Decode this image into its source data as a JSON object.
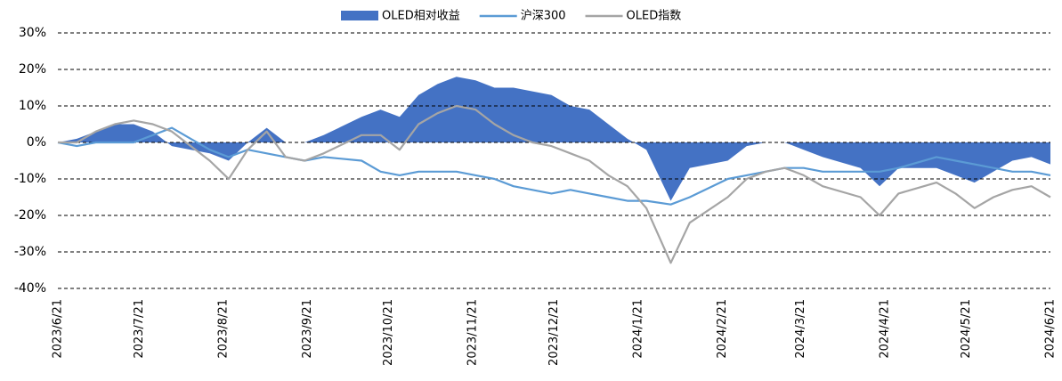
{
  "chart_data": {
    "type": "line",
    "x": [
      "2023/6/21",
      "2023/6/28",
      "2023/7/5",
      "2023/7/12",
      "2023/7/19",
      "2023/7/26",
      "2023/8/2",
      "2023/8/9",
      "2023/8/16",
      "2023/8/23",
      "2023/8/30",
      "2023/9/6",
      "2023/9/13",
      "2023/9/20",
      "2023/9/27",
      "2023/10/11",
      "2023/10/18",
      "2023/10/25",
      "2023/11/1",
      "2023/11/8",
      "2023/11/15",
      "2023/11/22",
      "2023/11/29",
      "2023/12/6",
      "2023/12/13",
      "2023/12/20",
      "2023/12/27",
      "2024/1/3",
      "2024/1/10",
      "2024/1/17",
      "2024/1/24",
      "2024/2/2",
      "2024/2/9",
      "2024/2/23",
      "2024/3/1",
      "2024/3/8",
      "2024/3/15",
      "2024/3/22",
      "2024/3/29",
      "2024/4/12",
      "2024/4/19",
      "2024/4/26",
      "2024/5/10",
      "2024/5/17",
      "2024/5/24",
      "2024/5/31",
      "2024/6/7",
      "2024/6/14",
      "2024/6/21"
    ],
    "xlim": [
      "2023/6/21",
      "2024/6/21"
    ],
    "xticks": [
      "2023/6/21",
      "2023/7/21",
      "2023/8/21",
      "2023/9/21",
      "2023/10/21",
      "2023/11/21",
      "2023/12/21",
      "2024/1/21",
      "2024/2/21",
      "2024/3/21",
      "2024/4/21",
      "2024/5/21",
      "2024/6/21"
    ],
    "ylim": [
      -40,
      30
    ],
    "yticks": [
      {
        "value": -40,
        "label": "-40%"
      },
      {
        "value": -30,
        "label": "-30%"
      },
      {
        "value": -20,
        "label": "-20%"
      },
      {
        "value": -10,
        "label": "-10%"
      },
      {
        "value": 0,
        "label": "0%"
      },
      {
        "value": 10,
        "label": "10%"
      },
      {
        "value": 20,
        "label": "20%"
      },
      {
        "value": 30,
        "label": "30%"
      }
    ],
    "grid": true,
    "legend": "top",
    "series": [
      {
        "name": "OLED相对收益",
        "color": "#4472c4",
        "style": "area",
        "values": [
          0,
          1,
          3,
          5,
          5,
          3,
          -1,
          -2,
          -3,
          -5,
          0,
          4,
          0,
          0,
          2,
          7,
          9,
          7,
          13,
          16,
          18,
          17,
          15,
          15,
          14,
          13,
          10,
          9,
          5,
          1,
          -2,
          -16,
          -7,
          -5,
          -1,
          0,
          0,
          -2,
          -4,
          -7,
          -12,
          -7,
          -7,
          -9,
          -11,
          -8,
          -5,
          -4,
          -6
        ]
      },
      {
        "name": "沪深300",
        "color": "#5b9bd5",
        "style": "line",
        "values": [
          0,
          -1,
          0,
          0,
          0,
          2,
          4,
          1,
          -2,
          -4,
          -2,
          -3,
          -4,
          -5,
          -4,
          -5,
          -8,
          -9,
          -8,
          -8,
          -8,
          -9,
          -10,
          -12,
          -13,
          -14,
          -13,
          -14,
          -15,
          -16,
          -16,
          -17,
          -15,
          -10,
          -9,
          -8,
          -7,
          -7,
          -8,
          -8,
          -8,
          -7,
          -4,
          -5,
          -6,
          -7,
          -8,
          -8,
          -9
        ]
      },
      {
        "name": "OLED指数",
        "color": "#a5a5a5",
        "style": "line",
        "values": [
          0,
          0,
          3,
          5,
          6,
          5,
          3,
          -1,
          -5,
          -10,
          -2,
          3,
          -4,
          -5,
          -3,
          2,
          2,
          -2,
          5,
          8,
          10,
          9,
          5,
          2,
          0,
          -1,
          -3,
          -5,
          -9,
          -12,
          -18,
          -33,
          -22,
          -15,
          -10,
          -8,
          -7,
          -9,
          -12,
          -15,
          -20,
          -14,
          -11,
          -14,
          -18,
          -15,
          -13,
          -12,
          -15
        ]
      }
    ]
  }
}
